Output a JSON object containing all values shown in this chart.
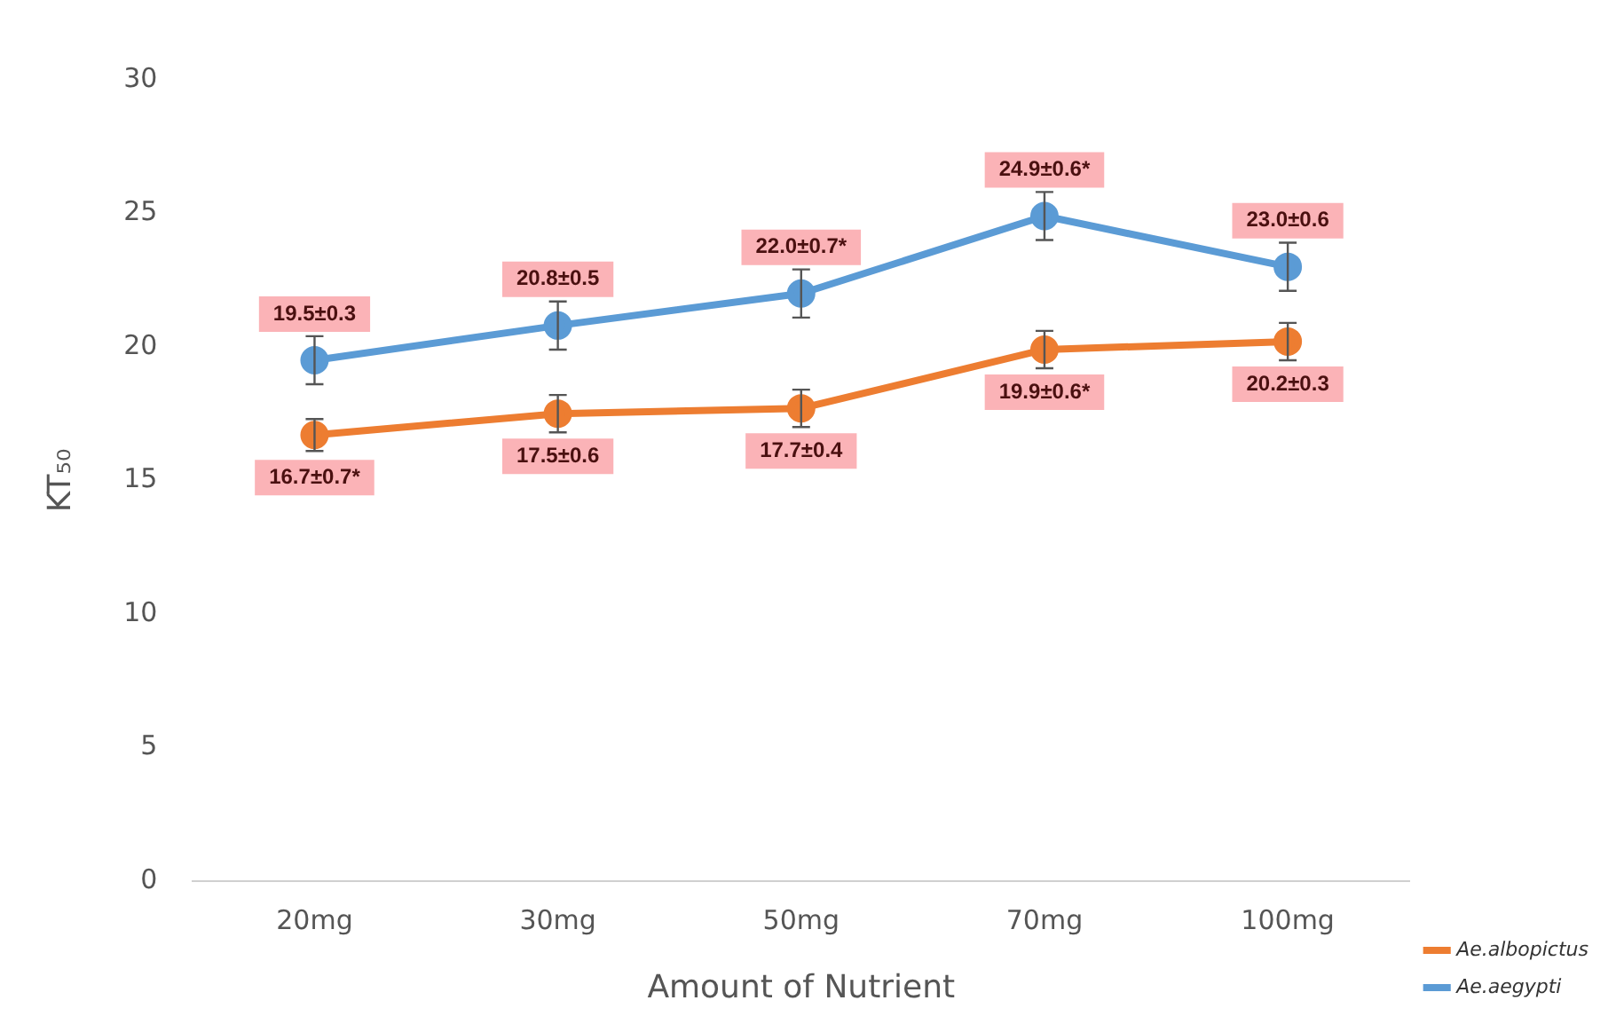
{
  "chart_data": {
    "type": "line",
    "xlabel": "Amount of Nutrient",
    "ylabel": "KT₅₀",
    "categories": [
      "20mg",
      "30mg",
      "50mg",
      "70mg",
      "100mg"
    ],
    "ylim": [
      0,
      30
    ],
    "yticks": [
      0,
      5,
      10,
      15,
      20,
      25,
      30
    ],
    "grid": false,
    "legend": "bottom right",
    "marker": "circle",
    "series": [
      {
        "name": "Ae.albopictus",
        "color": "#ed7d31",
        "values": [
          16.7,
          17.5,
          17.7,
          19.9,
          20.2
        ],
        "errors": [
          0.6,
          0.7,
          0.7,
          0.7,
          0.7
        ],
        "value_labels": [
          "16.7±0.7*",
          "17.5±0.6",
          "17.7±0.4",
          "19.9±0.6*",
          "20.2±0.3"
        ]
      },
      {
        "name": "Ae.aegypti",
        "color": "#5b9bd5",
        "values": [
          19.5,
          20.8,
          22.0,
          24.9,
          23.0
        ],
        "errors": [
          0.9,
          0.9,
          0.9,
          0.9,
          0.9
        ],
        "value_labels": [
          "19.5±0.3",
          "20.8±0.5",
          "22.0±0.7*",
          "24.9±0.6*",
          "23.0±0.6"
        ]
      }
    ]
  }
}
